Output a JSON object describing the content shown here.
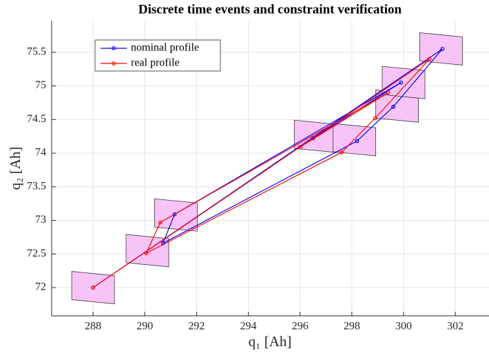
{
  "chart_data": {
    "type": "line",
    "title": "Discrete time events and constraint verification",
    "x_label": "q₁ [Ah]",
    "y_label": "q₂ [Ah]",
    "xlim": [
      286.4,
      303.3
    ],
    "xticks": [
      288,
      290,
      292,
      294,
      296,
      298,
      300,
      302
    ],
    "ylim": [
      71.58,
      75.97
    ],
    "yticks": [
      72,
      72.5,
      73,
      73.5,
      74,
      74.5,
      75,
      75.5
    ],
    "grid": true,
    "legend": "upper-left",
    "series": [
      {
        "name": "nominal profile",
        "color": "#0000ff",
        "x": [
          288,
          301.5,
          299.6,
          298.2,
          290.7,
          291.15,
          299.9,
          296.5
        ],
        "values": [
          72,
          75.55,
          74.69,
          74.18,
          72.66,
          73.09,
          75.05,
          74.22
        ]
      },
      {
        "name": "real profile",
        "color": "#ff0000",
        "x": [
          288,
          301,
          298.9,
          297.6,
          290.05,
          290.6,
          299.4,
          296
        ],
        "values": [
          72,
          75.4,
          74.52,
          74.01,
          72.51,
          72.97,
          74.9,
          74.09
        ]
      }
    ],
    "box_color": "#f8c4f8",
    "box_width": 1.65,
    "box_height": 0.42,
    "boxes": [
      [
        288,
        72
      ],
      [
        290.1,
        72.55
      ],
      [
        291.2,
        73.08
      ],
      [
        296.6,
        74.25
      ],
      [
        298.1,
        74.2
      ],
      [
        299.75,
        74.7
      ],
      [
        300,
        75.05
      ],
      [
        301.45,
        75.55
      ]
    ]
  }
}
